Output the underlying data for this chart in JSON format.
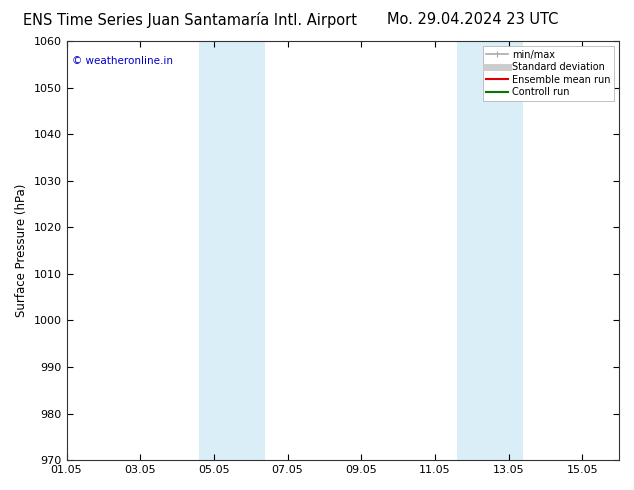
{
  "title_left": "ENS Time Series Juan Santamaría Intl. Airport",
  "title_right": "Mo. 29.04.2024 23 UTC",
  "ylabel": "Surface Pressure (hPa)",
  "ylim": [
    970,
    1060
  ],
  "yticks": [
    970,
    980,
    990,
    1000,
    1010,
    1020,
    1030,
    1040,
    1050,
    1060
  ],
  "xlim": [
    0,
    15
  ],
  "xtick_labels": [
    "01.05",
    "03.05",
    "05.05",
    "07.05",
    "09.05",
    "11.05",
    "13.05",
    "15.05"
  ],
  "xtick_positions": [
    0,
    2,
    4,
    6,
    8,
    10,
    12,
    14
  ],
  "blue_bands": [
    {
      "start": 3.6,
      "end": 5.4
    },
    {
      "start": 10.6,
      "end": 12.4
    }
  ],
  "band_color": "#daeef8",
  "background_color": "#ffffff",
  "watermark_text": "© weatheronline.in",
  "watermark_color": "#0000cc",
  "legend_items": [
    {
      "label": "min/max",
      "color": "#aaaaaa",
      "lw": 1.2
    },
    {
      "label": "Standard deviation",
      "color": "#cccccc",
      "lw": 5
    },
    {
      "label": "Ensemble mean run",
      "color": "#dd0000",
      "lw": 1.5
    },
    {
      "label": "Controll run",
      "color": "#007700",
      "lw": 1.5
    }
  ],
  "title_fontsize": 10.5,
  "tick_fontsize": 8,
  "ylabel_fontsize": 8.5,
  "watermark_fontsize": 7.5,
  "legend_fontsize": 7.0
}
